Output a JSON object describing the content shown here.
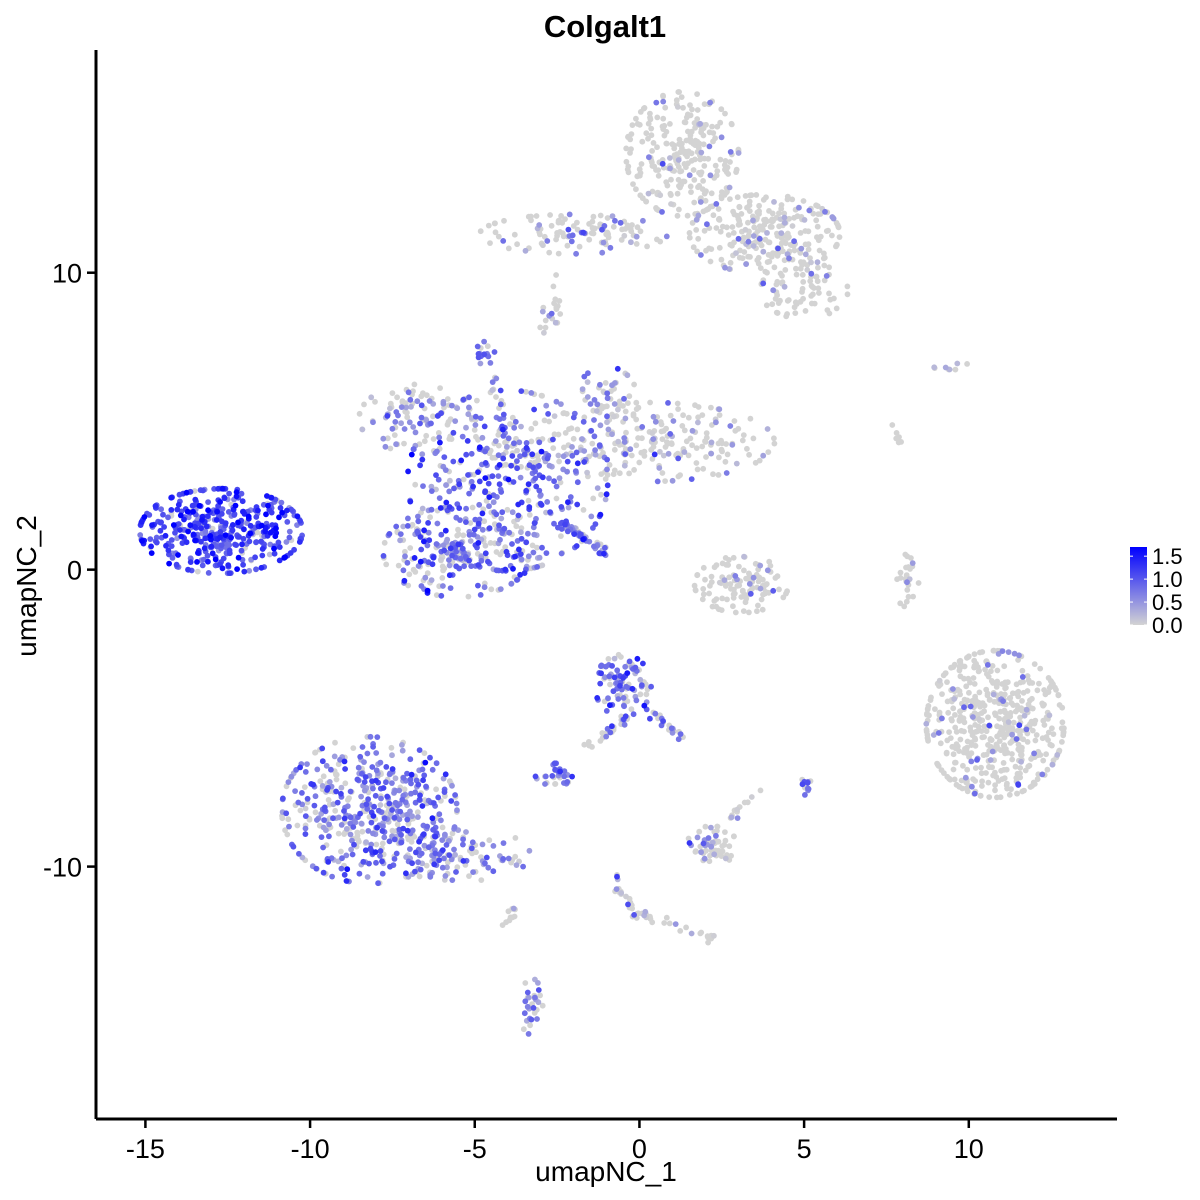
{
  "chart_data": {
    "type": "scatter",
    "title": "Colgalt1",
    "xlabel": "umapNC_1",
    "ylabel": "umapNC_2",
    "xlim": [
      -16.5,
      14.5
    ],
    "ylim": [
      -18.5,
      17.5
    ],
    "xticks": [
      -15,
      -10,
      -5,
      0,
      5,
      10
    ],
    "xtick_labels": [
      "-15",
      "-10",
      "-5",
      "0",
      "5",
      "10"
    ],
    "yticks": [
      -10,
      0,
      10
    ],
    "ytick_labels": [
      "-10",
      "0",
      "10"
    ],
    "grid": false,
    "legend": {
      "placement": "right",
      "type": "colorbar",
      "labels": [
        "1.5",
        "1.0",
        "0.5",
        "0.0"
      ],
      "values": [
        1.5,
        1.0,
        0.5,
        0.0
      ],
      "range": [
        0,
        1.7
      ],
      "low_color": "#d3d3d3",
      "high_color": "#0000ff"
    },
    "clusters": [
      {
        "center": [
          -12.7,
          1.3
        ],
        "spread": [
          1.3,
          0.75
        ],
        "n": 420,
        "expr": 1.15,
        "expr_sd": 0.35,
        "zero_frac": 0.08
      },
      {
        "center": [
          -8.2,
          -8.1
        ],
        "spread": [
          1.4,
          1.3
        ],
        "n": 480,
        "expr": 0.75,
        "expr_sd": 0.3,
        "zero_frac": 0.35
      },
      {
        "center": [
          -5.6,
          -9.6
        ],
        "spread": [
          1.2,
          0.5
        ],
        "n": 110,
        "expr": 0.7,
        "expr_sd": 0.3,
        "zero_frac": 0.3
      },
      {
        "center": [
          -4.0,
          3.0
        ],
        "spread": [
          1.6,
          1.6
        ],
        "n": 380,
        "expr": 0.85,
        "expr_sd": 0.35,
        "zero_frac": 0.25
      },
      {
        "center": [
          -5.5,
          0.6
        ],
        "spread": [
          1.2,
          0.8
        ],
        "n": 220,
        "expr": 0.75,
        "expr_sd": 0.35,
        "zero_frac": 0.35
      },
      {
        "center": [
          -6.8,
          5.1
        ],
        "spread": [
          0.9,
          0.6
        ],
        "n": 100,
        "expr": 0.55,
        "expr_sd": 0.3,
        "zero_frac": 0.55
      },
      {
        "center": [
          0.3,
          4.3
        ],
        "spread": [
          2.0,
          0.7
        ],
        "n": 220,
        "expr": 0.45,
        "expr_sd": 0.3,
        "zero_frac": 0.7
      },
      {
        "center": [
          -1.0,
          5.7
        ],
        "spread": [
          0.5,
          0.6
        ],
        "n": 50,
        "expr": 0.6,
        "expr_sd": 0.3,
        "zero_frac": 0.5
      },
      {
        "center": [
          1.3,
          14.0
        ],
        "spread": [
          0.9,
          1.1
        ],
        "n": 260,
        "expr": 0.4,
        "expr_sd": 0.3,
        "zero_frac": 0.88
      },
      {
        "center": [
          3.8,
          11.3
        ],
        "spread": [
          1.2,
          0.7
        ],
        "n": 260,
        "expr": 0.4,
        "expr_sd": 0.3,
        "zero_frac": 0.88
      },
      {
        "center": [
          -2.0,
          11.3
        ],
        "spread": [
          1.5,
          0.35
        ],
        "n": 110,
        "expr": 0.55,
        "expr_sd": 0.3,
        "zero_frac": 0.75
      },
      {
        "center": [
          5.0,
          9.4
        ],
        "spread": [
          0.7,
          0.5
        ],
        "n": 70,
        "expr": 0.45,
        "expr_sd": 0.3,
        "zero_frac": 0.8
      },
      {
        "center": [
          10.8,
          -5.2
        ],
        "spread": [
          1.1,
          1.3
        ],
        "n": 520,
        "expr": 0.55,
        "expr_sd": 0.35,
        "zero_frac": 0.9
      },
      {
        "center": [
          -0.5,
          -3.9
        ],
        "spread": [
          0.45,
          0.55
        ],
        "n": 90,
        "expr": 0.85,
        "expr_sd": 0.35,
        "zero_frac": 0.25
      },
      {
        "center": [
          3.1,
          -0.5
        ],
        "spread": [
          0.75,
          0.5
        ],
        "n": 110,
        "expr": 0.5,
        "expr_sd": 0.3,
        "zero_frac": 0.85
      },
      {
        "center": [
          2.2,
          -9.3
        ],
        "spread": [
          0.4,
          0.35
        ],
        "n": 60,
        "expr": 0.5,
        "expr_sd": 0.3,
        "zero_frac": 0.75
      },
      {
        "center": [
          -2.5,
          -6.9
        ],
        "spread": [
          0.35,
          0.2
        ],
        "n": 30,
        "expr": 0.7,
        "expr_sd": 0.3,
        "zero_frac": 0.35
      },
      {
        "center": [
          -3.3,
          -14.7
        ],
        "spread": [
          0.2,
          0.5
        ],
        "n": 30,
        "expr": 0.6,
        "expr_sd": 0.3,
        "zero_frac": 0.45
      },
      {
        "center": [
          8.1,
          -0.3
        ],
        "spread": [
          0.2,
          0.5
        ],
        "n": 25,
        "expr": 0.4,
        "expr_sd": 0.3,
        "zero_frac": 0.85
      },
      {
        "center": [
          5.0,
          -7.3
        ],
        "spread": [
          0.12,
          0.18
        ],
        "n": 12,
        "expr": 0.9,
        "expr_sd": 0.3,
        "zero_frac": 0.2
      },
      {
        "center": [
          -4.7,
          7.3
        ],
        "spread": [
          0.2,
          0.2
        ],
        "n": 15,
        "expr": 0.7,
        "expr_sd": 0.3,
        "zero_frac": 0.3
      },
      {
        "center": [
          -2.8,
          8.6
        ],
        "spread": [
          0.15,
          0.35
        ],
        "n": 10,
        "expr": 0.5,
        "expr_sd": 0.3,
        "zero_frac": 0.6
      }
    ],
    "trails": [
      {
        "from": [
          -2.4,
          1.6
        ],
        "to": [
          -1.0,
          0.6
        ],
        "n": 45,
        "expr": 0.8,
        "expr_sd": 0.3,
        "zero_frac": 0.3
      },
      {
        "from": [
          -4.0,
          3.8
        ],
        "to": [
          -4.4,
          6.7
        ],
        "n": 20,
        "expr": 0.7,
        "expr_sd": 0.3,
        "zero_frac": 0.35
      },
      {
        "from": [
          -0.4,
          -5.0
        ],
        "to": [
          -1.8,
          -6.2
        ],
        "n": 25,
        "expr": 0.7,
        "expr_sd": 0.3,
        "zero_frac": 0.5
      },
      {
        "from": [
          0.3,
          -4.7
        ],
        "to": [
          1.3,
          -5.7
        ],
        "n": 20,
        "expr": 0.7,
        "expr_sd": 0.3,
        "zero_frac": 0.4
      },
      {
        "from": [
          -0.8,
          -10.3
        ],
        "to": [
          0.0,
          -11.8
        ],
        "n": 22,
        "expr": 0.5,
        "expr_sd": 0.3,
        "zero_frac": 0.6
      },
      {
        "from": [
          0.0,
          -11.6
        ],
        "to": [
          2.3,
          -12.4
        ],
        "n": 25,
        "expr": 0.4,
        "expr_sd": 0.3,
        "zero_frac": 0.7
      },
      {
        "from": [
          2.6,
          -8.5
        ],
        "to": [
          3.6,
          -7.5
        ],
        "n": 12,
        "expr": 0.3,
        "expr_sd": 0.3,
        "zero_frac": 0.85
      },
      {
        "from": [
          -3.7,
          -11.3
        ],
        "to": [
          -4.2,
          -12.3
        ],
        "n": 10,
        "expr": 0.4,
        "expr_sd": 0.3,
        "zero_frac": 0.7
      },
      {
        "from": [
          -2.5,
          10.0
        ],
        "to": [
          -2.5,
          8.2
        ],
        "n": 10,
        "expr": 0.4,
        "expr_sd": 0.3,
        "zero_frac": 0.7
      },
      {
        "from": [
          7.7,
          4.8
        ],
        "to": [
          7.9,
          4.3
        ],
        "n": 6,
        "expr": 0.1,
        "expr_sd": 0.1,
        "zero_frac": 0.95
      },
      {
        "from": [
          8.9,
          6.7
        ],
        "to": [
          9.9,
          6.9
        ],
        "n": 8,
        "expr": 0.5,
        "expr_sd": 0.3,
        "zero_frac": 0.6
      }
    ]
  }
}
